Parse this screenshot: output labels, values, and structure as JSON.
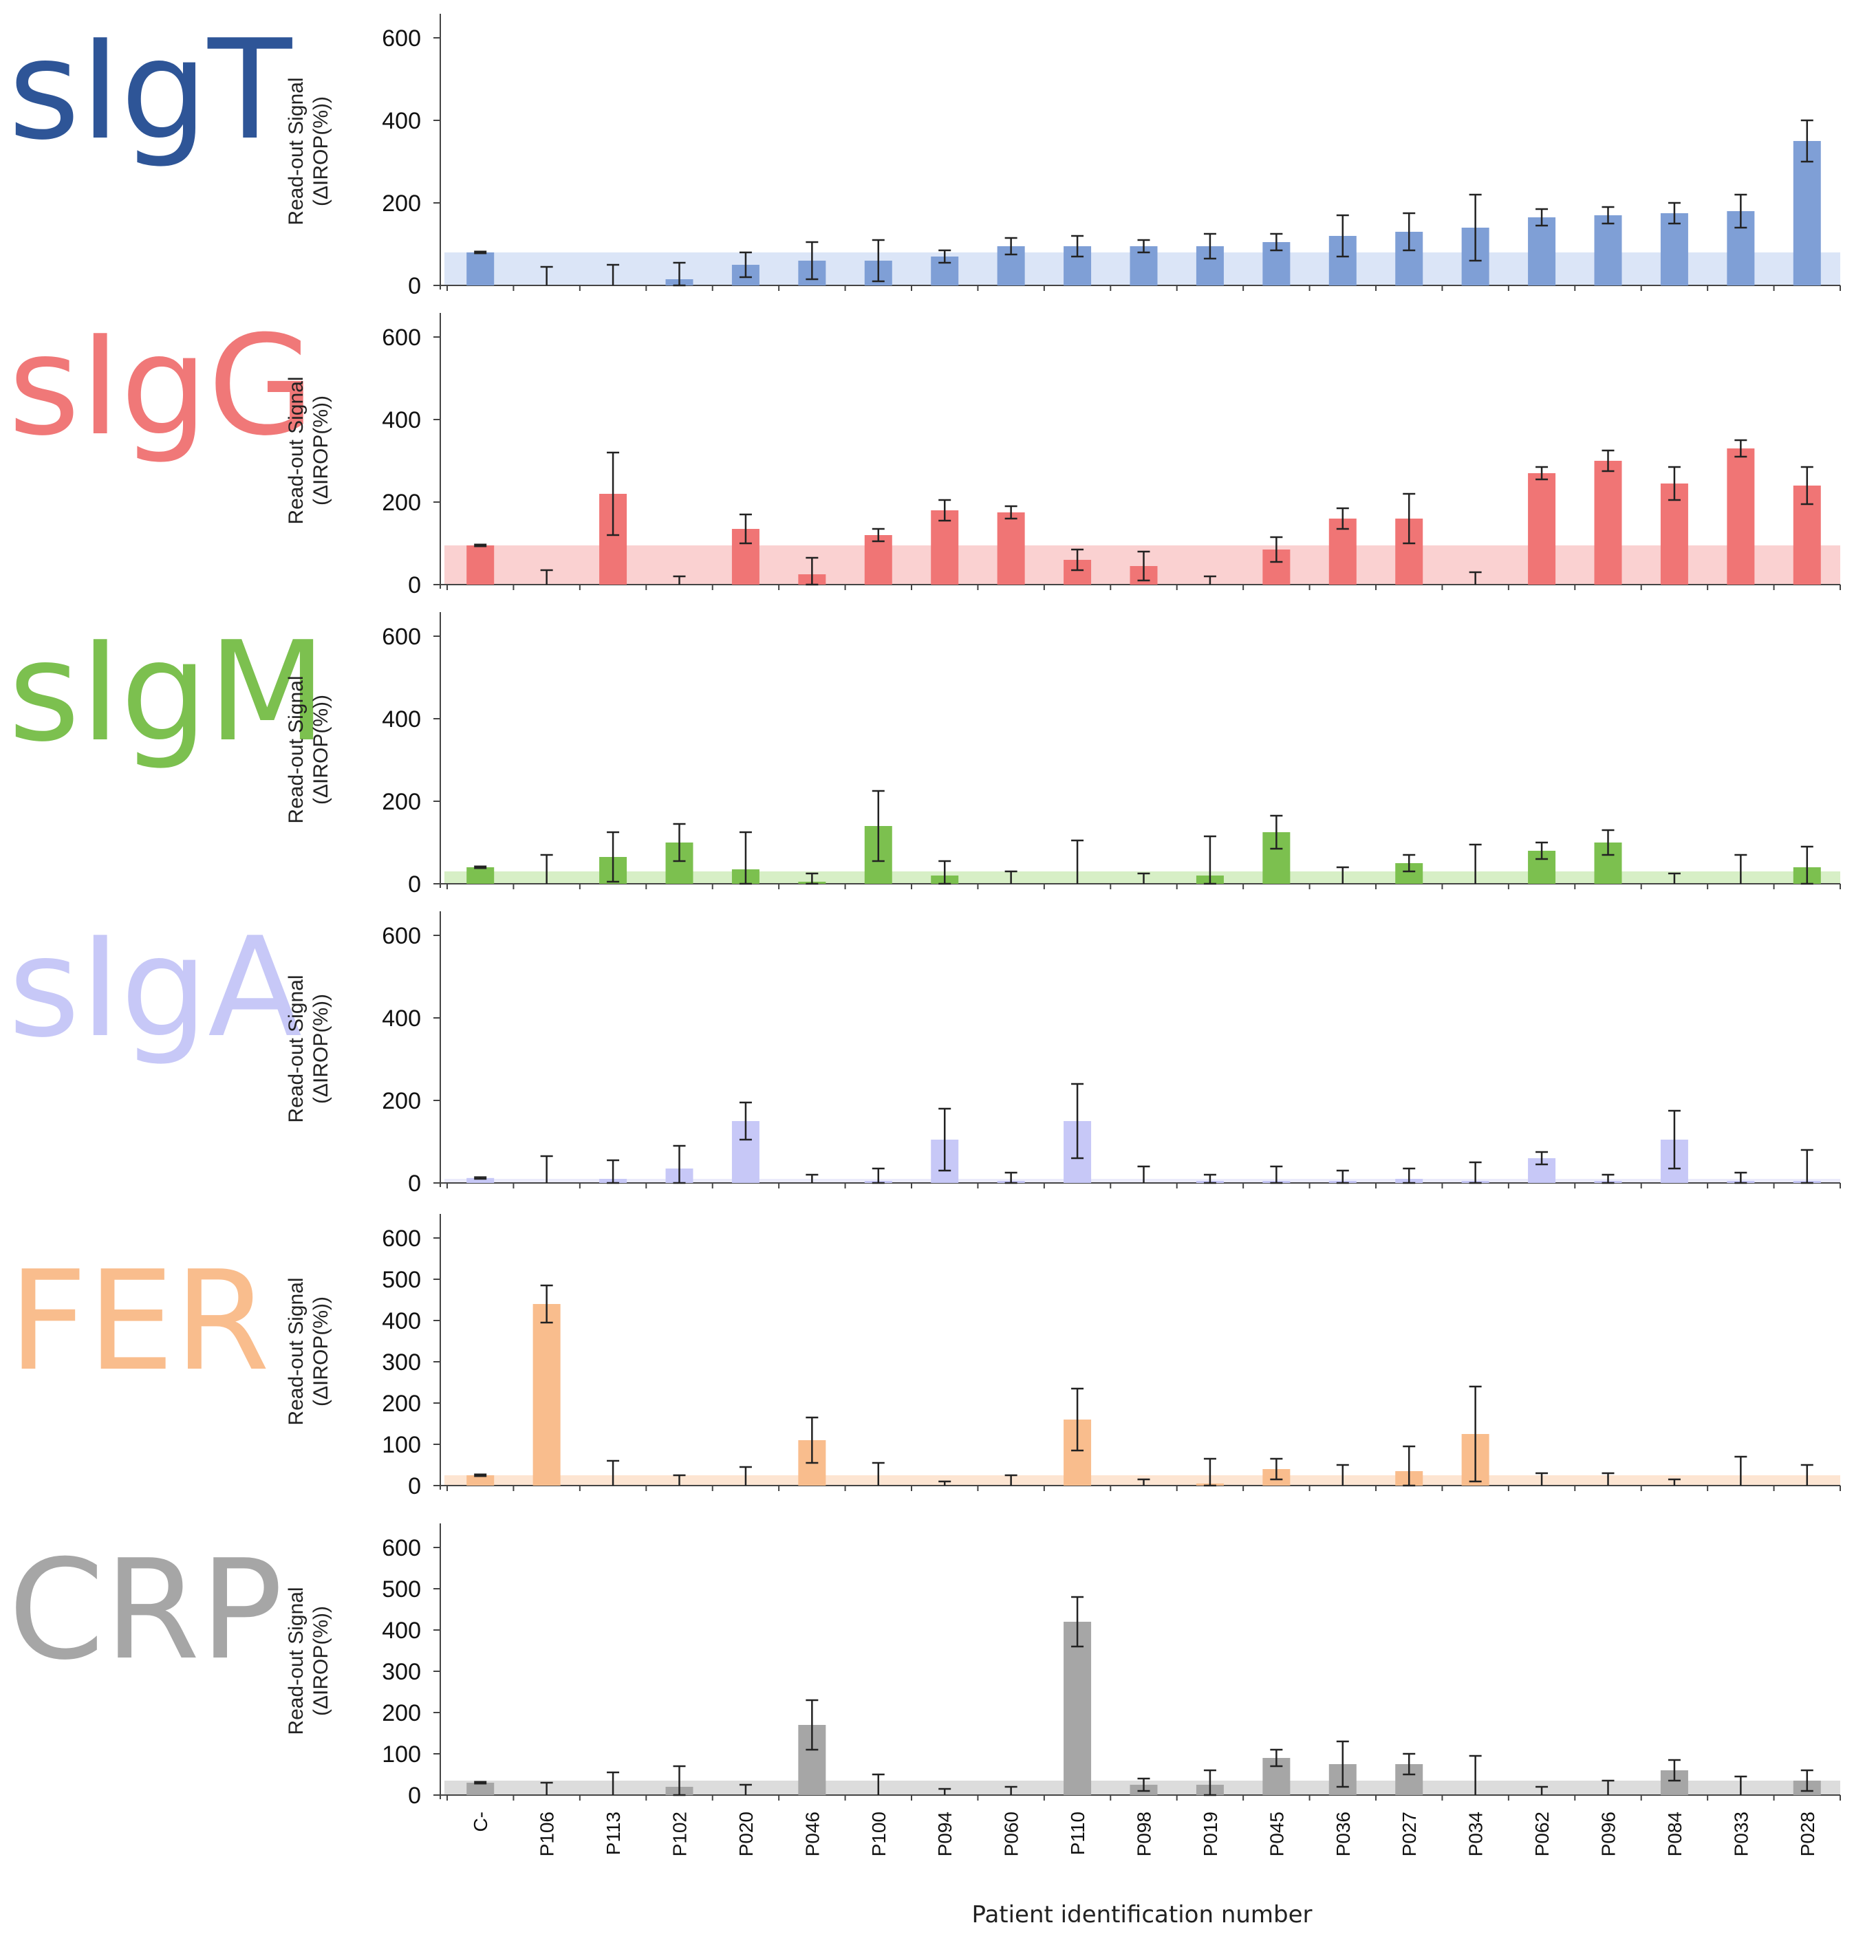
{
  "chart_data": {
    "type": "bar",
    "y_axis_label_line1": "Read-out Signal",
    "y_axis_label_line2": "(ΔIROP(%))",
    "xlabel": "Patient identification number",
    "categories": [
      "C-",
      "P106",
      "P113",
      "P102",
      "P020",
      "P046",
      "P100",
      "P094",
      "P060",
      "P110",
      "P098",
      "P019",
      "P045",
      "P036",
      "P027",
      "P034",
      "P062",
      "P096",
      "P084",
      "P033",
      "P028"
    ],
    "panels": [
      {
        "name": "sIgT",
        "color": "#2e5597",
        "bar_color": "#7f9fd6",
        "band_color": "#dbe5f7",
        "cutoff": 80,
        "ylim": [
          0,
          650
        ],
        "yticks": [
          0,
          200,
          400,
          600
        ],
        "values": [
          80,
          0,
          0,
          15,
          50,
          60,
          60,
          70,
          95,
          95,
          95,
          95,
          105,
          120,
          130,
          140,
          165,
          170,
          175,
          180,
          350
        ],
        "errors": [
          2,
          45,
          50,
          40,
          30,
          45,
          50,
          15,
          20,
          25,
          15,
          30,
          20,
          50,
          45,
          80,
          20,
          20,
          25,
          40,
          50
        ]
      },
      {
        "name": "sIgG",
        "color": "#f07878",
        "bar_color": "#f07575",
        "band_color": "#fad1d1",
        "cutoff": 95,
        "ylim": [
          0,
          650
        ],
        "yticks": [
          0,
          200,
          400,
          600
        ],
        "values": [
          95,
          0,
          220,
          0,
          135,
          25,
          120,
          180,
          175,
          60,
          45,
          0,
          85,
          160,
          160,
          0,
          270,
          300,
          245,
          330,
          240
        ],
        "errors": [
          2,
          35,
          100,
          20,
          35,
          40,
          15,
          25,
          15,
          25,
          35,
          20,
          30,
          25,
          60,
          30,
          15,
          25,
          40,
          20,
          45
        ]
      },
      {
        "name": "sIgM",
        "color": "#7cc04f",
        "bar_color": "#7cc04f",
        "band_color": "#d7efc6",
        "cutoff": 30,
        "ylim": [
          0,
          650
        ],
        "yticks": [
          0,
          200,
          400,
          600
        ],
        "values": [
          40,
          0,
          65,
          100,
          35,
          5,
          140,
          20,
          0,
          0,
          0,
          20,
          125,
          0,
          50,
          0,
          80,
          100,
          0,
          0,
          40
        ],
        "errors": [
          2,
          70,
          60,
          45,
          90,
          20,
          85,
          35,
          30,
          105,
          25,
          95,
          40,
          40,
          20,
          95,
          20,
          30,
          25,
          70,
          50
        ]
      },
      {
        "name": "sIgA",
        "color": "#c7c8f7",
        "bar_color": "#c7c8f7",
        "band_color": "#ebebfb",
        "cutoff": 10,
        "ylim": [
          0,
          650
        ],
        "yticks": [
          0,
          200,
          400,
          600
        ],
        "values": [
          12,
          0,
          10,
          35,
          150,
          0,
          5,
          105,
          5,
          150,
          0,
          5,
          5,
          5,
          10,
          5,
          60,
          5,
          105,
          5,
          5
        ],
        "errors": [
          2,
          65,
          45,
          55,
          45,
          20,
          30,
          75,
          20,
          90,
          40,
          15,
          35,
          25,
          25,
          45,
          15,
          15,
          70,
          20,
          75
        ]
      },
      {
        "name": "FER",
        "color": "#f9bd8d",
        "bar_color": "#f9bd8d",
        "band_color": "#fde5d2",
        "cutoff": 25,
        "ylim": [
          0,
          650
        ],
        "yticks": [
          0,
          100,
          200,
          300,
          400,
          500,
          600
        ],
        "values": [
          25,
          440,
          0,
          0,
          0,
          110,
          0,
          0,
          0,
          160,
          0,
          5,
          40,
          0,
          35,
          125,
          0,
          0,
          0,
          0,
          0
        ],
        "errors": [
          2,
          45,
          60,
          25,
          45,
          55,
          55,
          10,
          25,
          75,
          15,
          60,
          25,
          50,
          60,
          115,
          30,
          30,
          15,
          70,
          50
        ]
      },
      {
        "name": "CRP",
        "color": "#a6a6a6",
        "bar_color": "#a6a6a6",
        "band_color": "#dcdcdc",
        "cutoff": 35,
        "ylim": [
          0,
          650
        ],
        "yticks": [
          0,
          100,
          200,
          300,
          400,
          500,
          600
        ],
        "values": [
          30,
          0,
          0,
          20,
          0,
          170,
          0,
          0,
          0,
          420,
          25,
          25,
          90,
          75,
          75,
          0,
          0,
          0,
          60,
          0,
          35
        ],
        "errors": [
          2,
          30,
          55,
          50,
          25,
          60,
          50,
          15,
          20,
          60,
          15,
          35,
          20,
          55,
          25,
          95,
          20,
          35,
          25,
          45,
          25
        ]
      }
    ]
  }
}
